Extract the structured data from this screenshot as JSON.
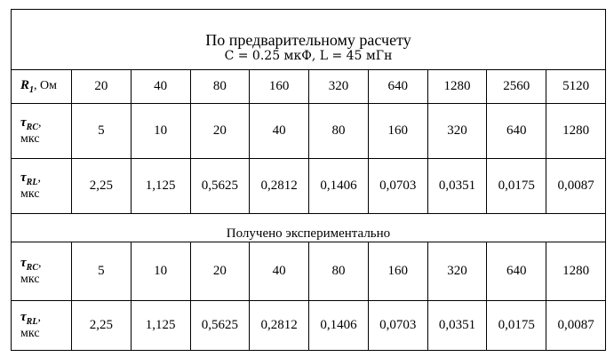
{
  "title": "По предварительному расчету",
  "subtitle": "C = 0.25 мкФ, L = 45 мГн",
  "header": {
    "label": {
      "symbol": "R",
      "sub": "1",
      "sep": ",",
      "unit": "Ом"
    },
    "values": [
      "20",
      "40",
      "80",
      "160",
      "320",
      "640",
      "1280",
      "2560",
      "5120"
    ]
  },
  "calculated": [
    {
      "label": {
        "symbol": "τ",
        "sub": "RC",
        "sep": ",",
        "unit": "мкс"
      },
      "values": [
        "5",
        "10",
        "20",
        "40",
        "80",
        "160",
        "320",
        "640",
        "1280"
      ]
    },
    {
      "label": {
        "symbol": "τ",
        "sub": "RL",
        "sep": ",",
        "unit": "мкс"
      },
      "values": [
        "2,25",
        "1,125",
        "0,5625",
        "0,2812",
        "0,1406",
        "0,0703",
        "0,0351",
        "0,0175",
        "0,0087"
      ]
    }
  ],
  "experimental_title": "Получено экспериментально",
  "experimental": [
    {
      "label": {
        "symbol": "τ",
        "sub": "RC",
        "sep": ",",
        "unit": "мкс"
      },
      "values": [
        "5",
        "10",
        "20",
        "40",
        "80",
        "160",
        "320",
        "640",
        "1280"
      ]
    },
    {
      "label": {
        "symbol": "τ",
        "sub": "RL",
        "sep": ",",
        "unit": "мкс"
      },
      "values": [
        "2,25",
        "1,125",
        "0,5625",
        "0,2812",
        "0,1406",
        "0,0703",
        "0,0351",
        "0,0175",
        "0,0087"
      ]
    }
  ]
}
